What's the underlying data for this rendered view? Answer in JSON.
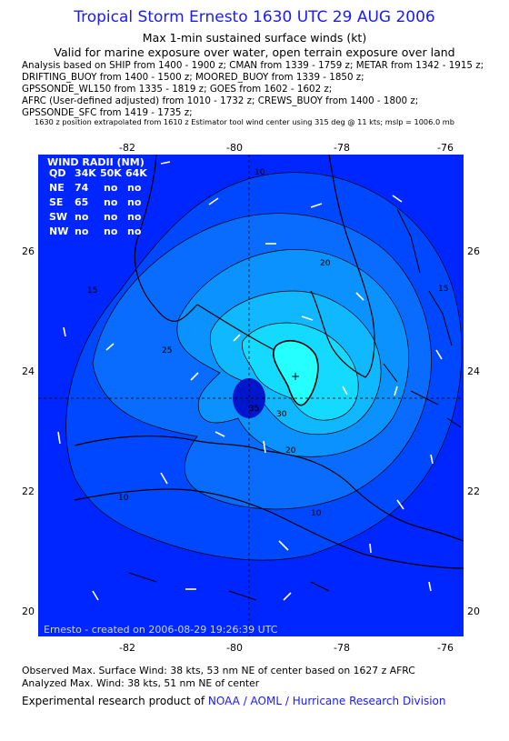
{
  "header": {
    "title": "Tropical Storm Ernesto 1630 UTC 29 AUG 2006",
    "subtitle1": "Max 1-min sustained surface winds (kt)",
    "subtitle2": "Valid for marine exposure over water, open terrain exposure over land",
    "analysis_lines": [
      "Analysis based on  SHIP from 1400 - 1900 z;  CMAN from 1339 - 1759 z;  METAR from 1342 - 1915 z;",
      "DRIFTING_BUOY from 1400 - 1500 z;  MOORED_BUOY from 1339 - 1850 z;",
      "GPSSONDE_WL150 from 1335 - 1819 z;  GOES from 1602 - 1602 z;",
      "AFRC (User-defined adjusted) from 1010 - 1732 z;  CREWS_BUOY from 1400 - 1800 z;",
      "GPSSONDE_SFC from 1419 - 1735 z;"
    ],
    "position_note": "1630 z position extrapolated from 1610 z Estimator tool wind center using 315 deg @ 11 kts; mslp = 1006.0 mb"
  },
  "map": {
    "lon_ticks": [
      "-82",
      "-80",
      "-78",
      "-76"
    ],
    "lat_ticks": [
      "26",
      "24",
      "22",
      "20"
    ],
    "contour_labels": [
      "10",
      "15",
      "20",
      "25",
      "30",
      "35",
      "10",
      "15",
      "20",
      "10"
    ],
    "wind_radii": {
      "title": "WIND RADII (NM)",
      "header": [
        "QD",
        "34K",
        "50K",
        "64K"
      ],
      "rows": [
        [
          "NE",
          "74",
          "no",
          "no"
        ],
        [
          "SE",
          "65",
          "no",
          "no"
        ],
        [
          "SW",
          "no",
          "no",
          "no"
        ],
        [
          "NW",
          "no",
          "no",
          "no"
        ]
      ]
    },
    "credit": "Ernesto - created on 2006-08-29 19:26:39 UTC",
    "colors": {
      "ocean": "#0026ff",
      "level_10": "#0048ff",
      "level_15": "#0a6cff",
      "level_20": "#0b92ff",
      "level_25": "#0fb8ff",
      "level_30": "#14daff",
      "level_35": "#25ffff",
      "low_center": "#0016cc"
    }
  },
  "footer": {
    "line1": "Observed Max. Surface Wind: 38 kts, 53 nm NE of center based on 1627 z AFRC",
    "line2": "Analyzed Max. Wind: 38 kts, 51 nm NE of center",
    "line3_prefix": "Experimental research product of ",
    "line3_link": "NOAA / AOML / Hurricane Research Division"
  }
}
